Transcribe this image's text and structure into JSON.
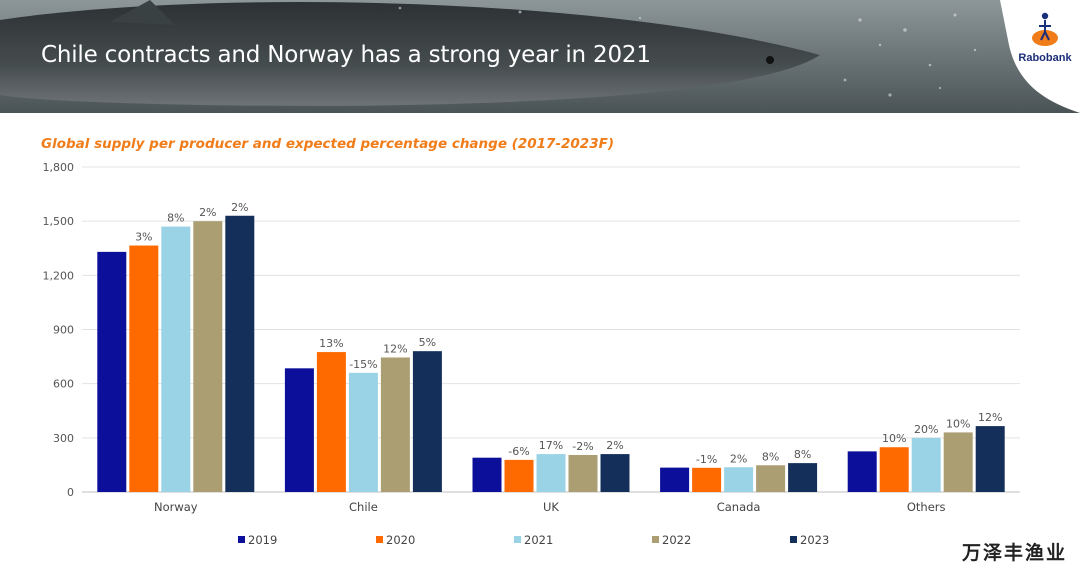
{
  "slide": {
    "title": "Chile contracts and Norway has a strong year in 2021",
    "logo_text": "Rabobank",
    "watermark": "万泽丰渔业"
  },
  "chart_data": {
    "type": "bar",
    "title": "Global supply per producer and expected percentage change (2017-2023F)",
    "categories": [
      "Norway",
      "Chile",
      "UK",
      "Canada",
      "Others"
    ],
    "ylim": [
      0,
      1800
    ],
    "yticks": [
      0,
      300,
      600,
      900,
      1200,
      1500,
      1800
    ],
    "ytick_labels": [
      "0",
      "300",
      "600",
      "900",
      "1,200",
      "1,500",
      "1,800"
    ],
    "grid": true,
    "legend_position": "bottom",
    "series": [
      {
        "name": "2019",
        "color": "#0b0f99",
        "values": [
          1330,
          685,
          190,
          135,
          225
        ],
        "labels": [
          "",
          "",
          "",
          "",
          ""
        ]
      },
      {
        "name": "2020",
        "color": "#ff6a00",
        "values": [
          1365,
          775,
          178,
          134,
          248
        ],
        "labels": [
          "3%",
          "13%",
          "-6%",
          "-1%",
          "10%"
        ]
      },
      {
        "name": "2021",
        "color": "#9ad3e6",
        "values": [
          1470,
          660,
          210,
          137,
          300
        ],
        "labels": [
          "8%",
          "-15%",
          "17%",
          "2%",
          "20%"
        ]
      },
      {
        "name": "2022",
        "color": "#ab9e72",
        "values": [
          1500,
          745,
          205,
          148,
          330
        ],
        "labels": [
          "2%",
          "12%",
          "-2%",
          "8%",
          "10%"
        ]
      },
      {
        "name": "2023",
        "color": "#14305a",
        "values": [
          1530,
          780,
          210,
          160,
          365
        ],
        "labels": [
          "2%",
          "5%",
          "2%",
          "8%",
          "12%"
        ]
      }
    ]
  }
}
